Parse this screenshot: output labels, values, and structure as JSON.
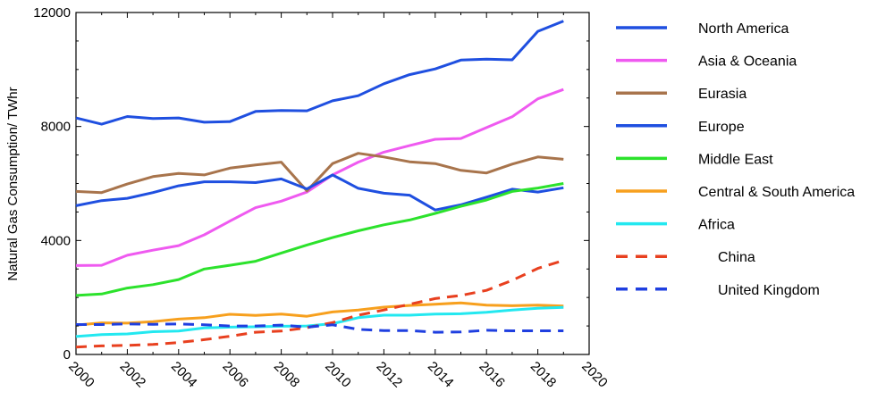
{
  "chart_data": {
    "type": "line",
    "xlabel": "",
    "ylabel": "Natural Gas Consumption/ TWhr",
    "xlim": [
      2000,
      2020
    ],
    "ylim": [
      0,
      12000
    ],
    "xticks": [
      "2000",
      "2002",
      "2004",
      "2006",
      "2008",
      "2010",
      "2012",
      "2014",
      "2016",
      "2018",
      "2020"
    ],
    "yticks": [
      "0",
      "4000",
      "8000",
      "12000"
    ],
    "x": [
      2000,
      2001,
      2002,
      2003,
      2004,
      2005,
      2006,
      2007,
      2008,
      2009,
      2010,
      2011,
      2012,
      2013,
      2014,
      2015,
      2016,
      2017,
      2018,
      2019
    ],
    "grid": false,
    "legend_position": "right",
    "series": [
      {
        "name": "North America",
        "color": "#1f4fe0",
        "dash": "solid",
        "values": [
          8300,
          8080,
          8350,
          8280,
          8300,
          8150,
          8170,
          8530,
          8560,
          8550,
          8900,
          9080,
          9500,
          9820,
          10020,
          10330,
          10360,
          10340,
          11340,
          11700
        ]
      },
      {
        "name": "Asia & Oceania",
        "color": "#ef5af0",
        "dash": "solid",
        "values": [
          3120,
          3130,
          3480,
          3660,
          3820,
          4200,
          4680,
          5150,
          5380,
          5700,
          6300,
          6750,
          7100,
          7330,
          7550,
          7580,
          7960,
          8340,
          8970,
          9300
        ]
      },
      {
        "name": "Eurasia",
        "color": "#a8744c",
        "dash": "solid",
        "values": [
          5720,
          5680,
          5980,
          6240,
          6350,
          6300,
          6540,
          6650,
          6750,
          5740,
          6700,
          7060,
          6930,
          6760,
          6700,
          6460,
          6370,
          6680,
          6930,
          6850
        ]
      },
      {
        "name": "Europe",
        "color": "#1f4fe0",
        "dash": "solid",
        "values": [
          5220,
          5400,
          5480,
          5680,
          5920,
          6060,
          6060,
          6030,
          6160,
          5810,
          6300,
          5830,
          5660,
          5590,
          5070,
          5250,
          5520,
          5800,
          5700,
          5850
        ]
      },
      {
        "name": "Middle East",
        "color": "#2ce22c",
        "dash": "solid",
        "values": [
          2070,
          2120,
          2330,
          2450,
          2630,
          3000,
          3130,
          3270,
          3560,
          3840,
          4100,
          4340,
          4550,
          4720,
          4950,
          5200,
          5420,
          5720,
          5840,
          6000
        ]
      },
      {
        "name": "Central & South America",
        "color": "#f7a01e",
        "dash": "solid",
        "values": [
          1030,
          1110,
          1100,
          1150,
          1240,
          1290,
          1410,
          1370,
          1420,
          1340,
          1490,
          1560,
          1660,
          1720,
          1760,
          1810,
          1730,
          1710,
          1730,
          1700
        ]
      },
      {
        "name": "Africa",
        "color": "#23e8f0",
        "dash": "solid",
        "values": [
          630,
          700,
          720,
          800,
          820,
          930,
          960,
          970,
          990,
          1000,
          1080,
          1290,
          1380,
          1380,
          1420,
          1430,
          1480,
          1560,
          1620,
          1650
        ]
      },
      {
        "name": "China",
        "color": "#e8401f",
        "dash": "dashed",
        "values": [
          260,
          300,
          320,
          350,
          420,
          520,
          640,
          780,
          820,
          940,
          1120,
          1380,
          1560,
          1760,
          1960,
          2070,
          2250,
          2600,
          3020,
          3300
        ]
      },
      {
        "name": "United Kingdom",
        "color": "#1f3fe0",
        "dash": "dashed",
        "values": [
          1050,
          1050,
          1070,
          1060,
          1070,
          1040,
          1000,
          1000,
          1030,
          960,
          1040,
          880,
          840,
          840,
          780,
          790,
          850,
          830,
          830,
          830
        ]
      }
    ]
  }
}
